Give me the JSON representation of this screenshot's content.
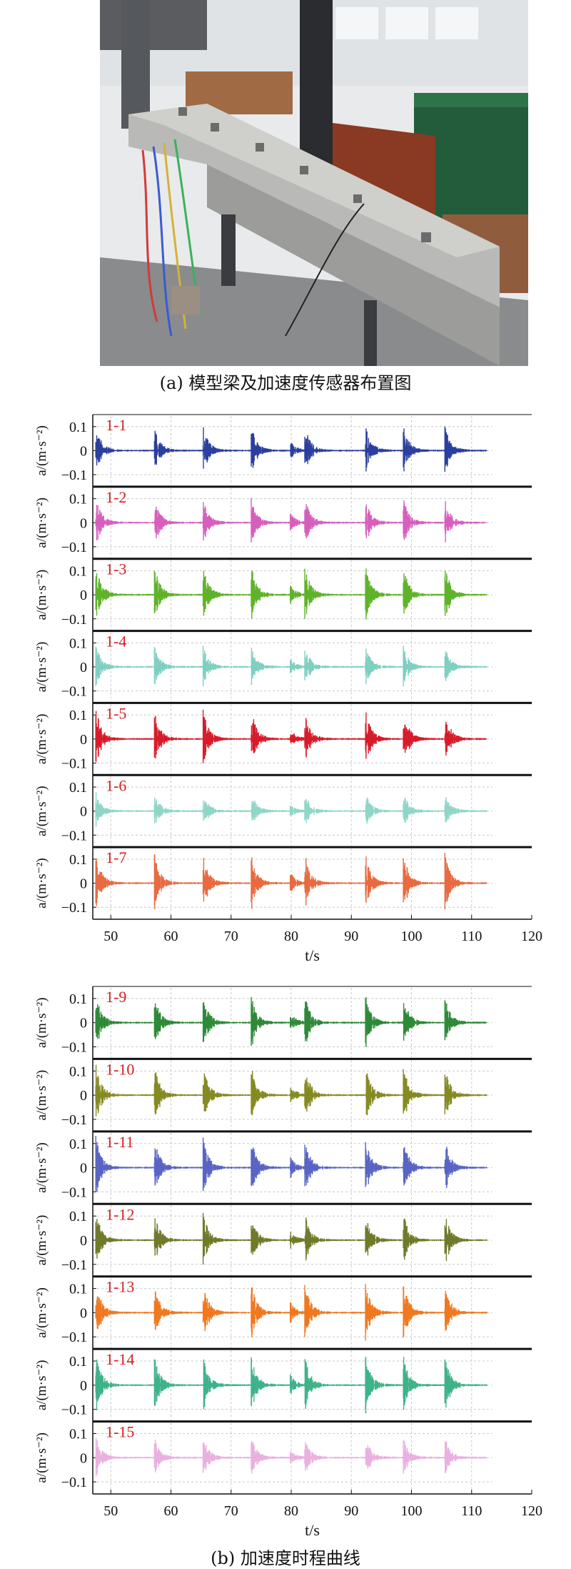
{
  "photo": {
    "caption": "(a) 模型梁及加速度传感器布置图",
    "colors": {
      "wall": "#e9eaeb",
      "beam": "#b9b9b7",
      "plate": "#8a3a22",
      "steel_green": "#235c3a",
      "column": "#2a2c30",
      "floor": "#8a8b8d"
    }
  },
  "figure_b_caption": "(b) 加速度时程曲线",
  "chart_data": [
    {
      "type": "line",
      "xlabel": "t/s",
      "ylabel": "a/(m·s⁻²)",
      "xlim": [
        47,
        120
      ],
      "xticks": [
        50,
        60,
        70,
        80,
        90,
        100,
        110,
        120
      ],
      "ylim": [
        -0.15,
        0.15
      ],
      "yticks": [
        0.1,
        0,
        -0.1
      ],
      "ytick_labels": [
        "0.1",
        "0",
        "−0.1"
      ],
      "grid": true,
      "signal_range": [
        47.5,
        112.5
      ],
      "impact_times": [
        47.5,
        57.2,
        65.3,
        73.3,
        79.8,
        82.2,
        92.3,
        98.6,
        105.5
      ],
      "series": [
        {
          "name": "1-1",
          "color": "#2b3f9e",
          "peak": 0.11
        },
        {
          "name": "1-2",
          "color": "#d65fbe",
          "peak": 0.11
        },
        {
          "name": "1-3",
          "color": "#5fb32a",
          "peak": 0.13
        },
        {
          "name": "1-4",
          "color": "#7fcfc2",
          "peak": 0.09
        },
        {
          "name": "1-5",
          "color": "#d81b2a",
          "peak": 0.13
        },
        {
          "name": "1-6",
          "color": "#8fd6c8",
          "peak": 0.08
        },
        {
          "name": "1-7",
          "color": "#e86a40",
          "peak": 0.13
        }
      ]
    },
    {
      "type": "line",
      "xlabel": "t/s",
      "ylabel": "a/(m·s⁻²)",
      "xlim": [
        47,
        120
      ],
      "xticks": [
        50,
        60,
        70,
        80,
        90,
        100,
        110,
        120
      ],
      "ylim": [
        -0.15,
        0.15
      ],
      "yticks": [
        0.1,
        0,
        -0.1
      ],
      "ytick_labels": [
        "0.1",
        "0",
        "−0.1"
      ],
      "grid": true,
      "signal_range": [
        47.5,
        112.5
      ],
      "impact_times": [
        47.5,
        57.2,
        65.3,
        73.3,
        79.8,
        82.2,
        92.3,
        98.6,
        105.5
      ],
      "series": [
        {
          "name": "1-9",
          "color": "#2e8a38",
          "peak": 0.12
        },
        {
          "name": "1-10",
          "color": "#858a22",
          "peak": 0.13
        },
        {
          "name": "1-11",
          "color": "#5865c4",
          "peak": 0.13
        },
        {
          "name": "1-12",
          "color": "#707a2a",
          "peak": 0.12
        },
        {
          "name": "1-13",
          "color": "#f07820",
          "peak": 0.13
        },
        {
          "name": "1-14",
          "color": "#3eb38a",
          "peak": 0.13
        },
        {
          "name": "1-15",
          "color": "#eab0e0",
          "peak": 0.09
        }
      ]
    }
  ]
}
